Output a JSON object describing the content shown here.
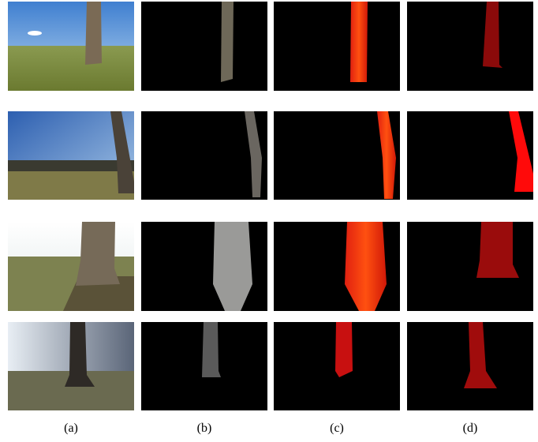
{
  "figure": {
    "columns": [
      {
        "label": "(a)"
      },
      {
        "label": "(b)"
      },
      {
        "label": "(c)"
      },
      {
        "label": "(d)"
      }
    ]
  }
}
